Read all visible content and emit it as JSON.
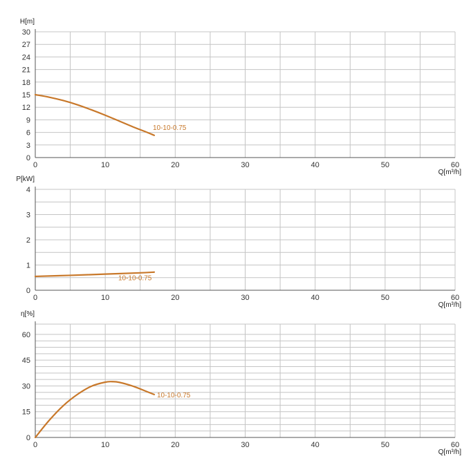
{
  "chart_data": [
    {
      "type": "line",
      "ylabel": "H[m]",
      "xlabel": "Q[m³/h]",
      "xlim": [
        0,
        60
      ],
      "ylim": [
        0,
        30
      ],
      "x_ticks": [
        0,
        10,
        20,
        30,
        40,
        50,
        60
      ],
      "y_ticks": [
        0,
        3,
        6,
        9,
        12,
        15,
        18,
        21,
        24,
        27,
        30
      ],
      "grid": true,
      "series": [
        {
          "name": "10-10-0.75",
          "color": "#c8782a",
          "x": [
            0,
            2,
            4,
            6,
            8,
            10,
            12,
            14,
            16,
            17
          ],
          "y": [
            15.0,
            14.4,
            13.6,
            12.6,
            11.4,
            10.1,
            8.7,
            7.3,
            6.0,
            5.3
          ]
        }
      ]
    },
    {
      "type": "line",
      "ylabel": "P[kW]",
      "xlabel": "Q[m³/h]",
      "xlim": [
        0,
        60
      ],
      "ylim": [
        0,
        4
      ],
      "x_ticks": [
        0,
        10,
        20,
        30,
        40,
        50,
        60
      ],
      "y_ticks": [
        0,
        1,
        2,
        3,
        4
      ],
      "grid": true,
      "series": [
        {
          "name": "10-10-0.75",
          "color": "#c8782a",
          "x": [
            0,
            5,
            10,
            15,
            17
          ],
          "y": [
            0.55,
            0.59,
            0.64,
            0.69,
            0.72
          ]
        }
      ]
    },
    {
      "type": "line",
      "ylabel": "η[%]",
      "xlabel": "Q[m³/h]",
      "xlim": [
        0,
        60
      ],
      "ylim": [
        0,
        66
      ],
      "x_ticks": [
        0,
        10,
        20,
        30,
        40,
        50,
        60
      ],
      "y_ticks": [
        0,
        15,
        30,
        45,
        60
      ],
      "grid": true,
      "series": [
        {
          "name": "10-10-0.75",
          "color": "#c8782a",
          "x": [
            0,
            2,
            4,
            6,
            8,
            10,
            11,
            12,
            14,
            16,
            17
          ],
          "y": [
            0,
            10.0,
            18.5,
            25.0,
            29.8,
            32.2,
            32.5,
            32.1,
            29.8,
            26.6,
            25.0
          ]
        }
      ]
    }
  ]
}
